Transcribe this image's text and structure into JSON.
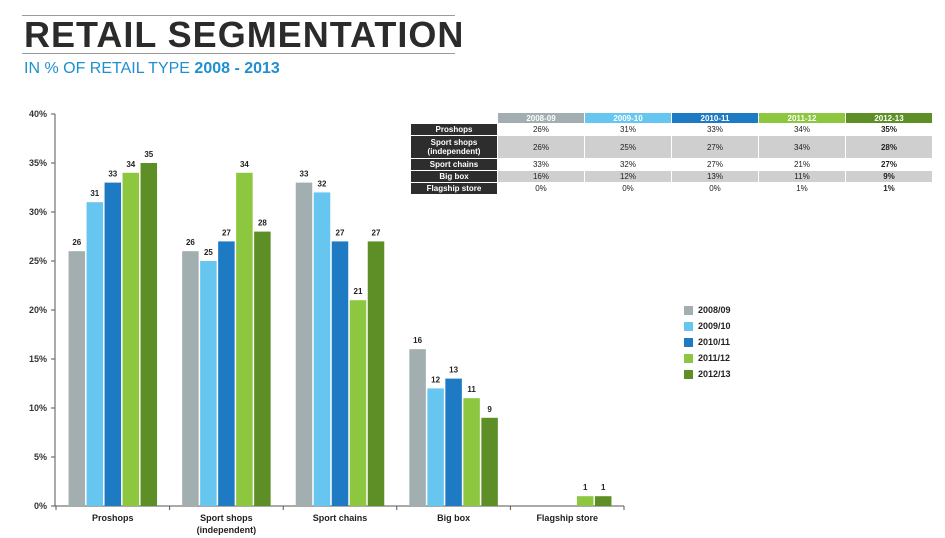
{
  "header": {
    "title": "RETAIL SEGMENTATION",
    "subtitle_prefix": "IN % OF RETAIL TYPE",
    "subtitle_years": "2008 - 2013"
  },
  "colors": {
    "2008/09": "#a2aeaf",
    "2009/10": "#66c6f0",
    "2010/11": "#1f7ac4",
    "2011/12": "#8dc63f",
    "2012/13": "#5e8f27"
  },
  "chart_data": {
    "type": "bar",
    "title": "",
    "xlabel": "",
    "ylabel": "",
    "ylim": [
      0,
      40
    ],
    "yticks": [
      "0%",
      "5%",
      "10%",
      "15%",
      "20%",
      "25%",
      "30%",
      "35%",
      "40%"
    ],
    "categories": [
      "Proshops",
      "Sport shops",
      "Sport chains",
      "Big box",
      "Flagship store"
    ],
    "category_sublabels": [
      "",
      "(independent)",
      "",
      "",
      ""
    ],
    "series": [
      {
        "name": "2008/09",
        "values": [
          26,
          26,
          33,
          16,
          0
        ]
      },
      {
        "name": "2009/10",
        "values": [
          31,
          25,
          32,
          12,
          0
        ]
      },
      {
        "name": "2010/11",
        "values": [
          33,
          27,
          27,
          13,
          0
        ]
      },
      {
        "name": "2011/12",
        "values": [
          34,
          34,
          21,
          11,
          1
        ]
      },
      {
        "name": "2012/13",
        "values": [
          35,
          28,
          27,
          9,
          1
        ]
      }
    ],
    "legend_position": "right"
  },
  "table": {
    "headers": [
      "2008-09",
      "2009-10",
      "2010-11",
      "2011-12",
      "2012-13"
    ],
    "rows": [
      {
        "label": "Proshops",
        "values": [
          "26%",
          "31%",
          "33%",
          "34%",
          "35%"
        ]
      },
      {
        "label": "Sport shops (independent)",
        "values": [
          "26%",
          "25%",
          "27%",
          "34%",
          "28%"
        ]
      },
      {
        "label": "Sport chains",
        "values": [
          "33%",
          "32%",
          "27%",
          "21%",
          "27%"
        ]
      },
      {
        "label": "Big box",
        "values": [
          "16%",
          "12%",
          "13%",
          "11%",
          "9%"
        ]
      },
      {
        "label": "Flagship store",
        "values": [
          "0%",
          "0%",
          "0%",
          "1%",
          "1%"
        ]
      }
    ]
  }
}
